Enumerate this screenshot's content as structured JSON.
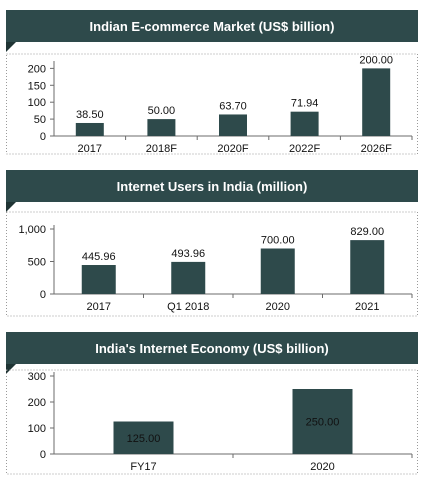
{
  "chart_data": [
    {
      "type": "bar",
      "title": "Indian E-commerce Market (US$ billion)",
      "categories": [
        "2017",
        "2018F",
        "2020F",
        "2022F",
        "2026F"
      ],
      "values": [
        38.5,
        50.0,
        63.7,
        71.94,
        200.0
      ],
      "value_labels": [
        "38.50",
        "50.00",
        "63.70",
        "71.94",
        "200.00"
      ],
      "yticks": [
        "0",
        "50",
        "100",
        "150",
        "200"
      ],
      "ytick_values": [
        0,
        50,
        100,
        150,
        200
      ],
      "ylim": [
        0,
        210
      ],
      "xlabel": "",
      "ylabel": "",
      "grid": false,
      "bar_color": "#2e4a4b"
    },
    {
      "type": "bar",
      "title": "Internet Users in India (million)",
      "categories": [
        "2017",
        "Q1 2018",
        "2020",
        "2021"
      ],
      "values": [
        445.96,
        493.96,
        700.0,
        829.0
      ],
      "value_labels": [
        "445.96",
        "493.96",
        "700.00",
        "829.00"
      ],
      "yticks": [
        "0",
        "500",
        "1,000"
      ],
      "ytick_values": [
        0,
        500,
        1000
      ],
      "ylim": [
        0,
        1000
      ],
      "xlabel": "",
      "ylabel": "",
      "grid": false,
      "bar_color": "#2e4a4b"
    },
    {
      "type": "bar",
      "title": "India's Internet Economy (US$ billion)",
      "categories": [
        "FY17",
        "2020"
      ],
      "values": [
        125.0,
        250.0
      ],
      "value_labels": [
        "125.00",
        "250.00"
      ],
      "yticks": [
        "0",
        "100",
        "200",
        "300"
      ],
      "ytick_values": [
        0,
        100,
        200,
        300
      ],
      "ylim": [
        0,
        300
      ],
      "xlabel": "",
      "ylabel": "",
      "grid": false,
      "bar_color": "#2e4a4b"
    }
  ],
  "colors": {
    "banner": "#2e4a4b",
    "banner_shadow": "#1f3434",
    "bar": "#2e4a4b",
    "frame": "#9a9a9a"
  }
}
